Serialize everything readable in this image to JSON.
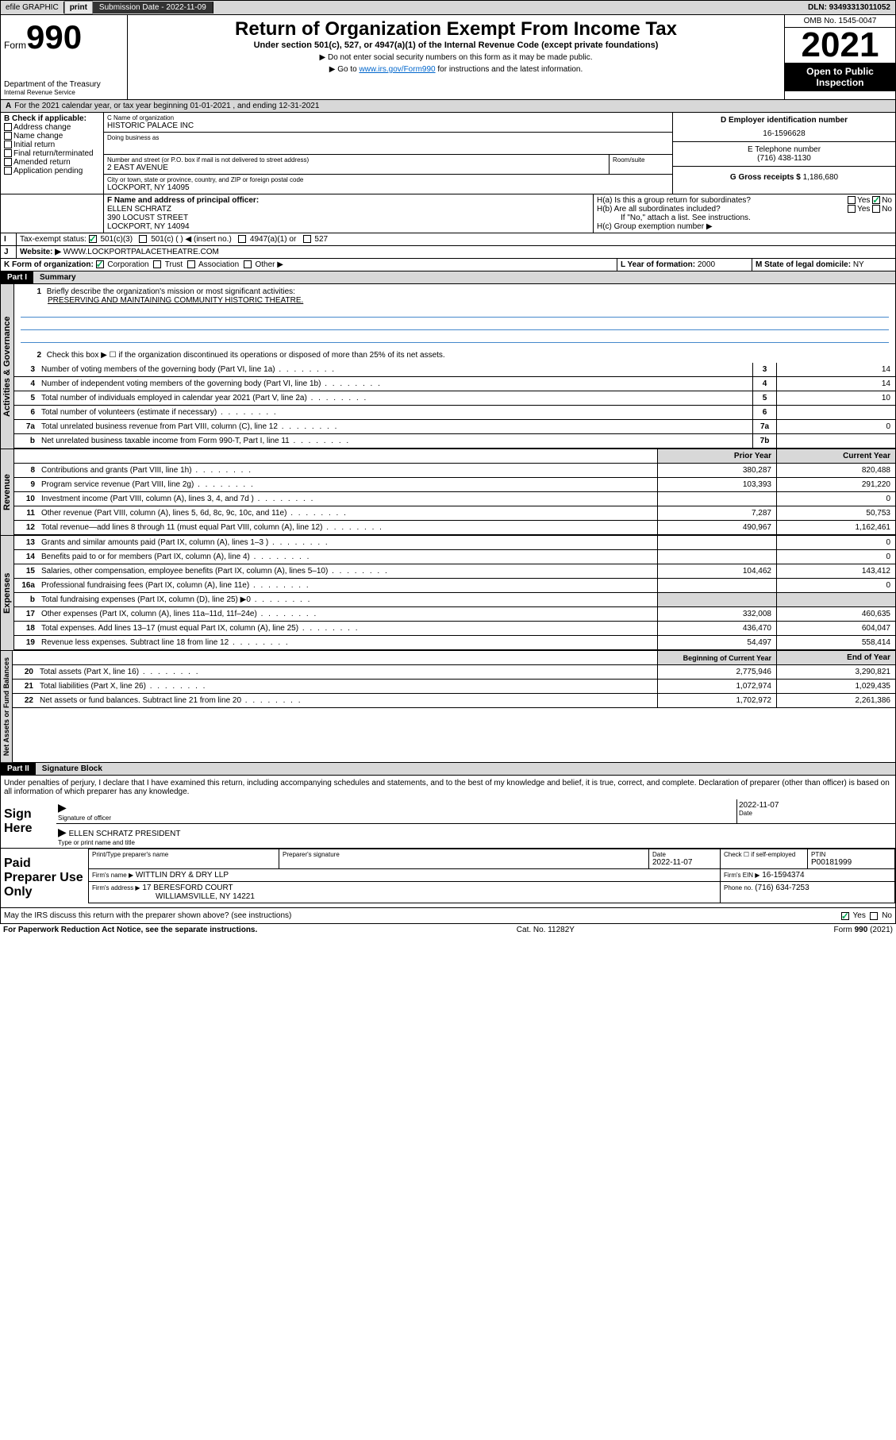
{
  "topbar": {
    "efile": "efile GRAPHIC",
    "print": "print",
    "subdate_label": "Submission Date - 2022-11-09",
    "dln": "DLN: 93493313011052"
  },
  "header": {
    "form_label": "Form",
    "form_num": "990",
    "dept": "Department of the Treasury",
    "irs": "Internal Revenue Service",
    "title": "Return of Organization Exempt From Income Tax",
    "subtitle": "Under section 501(c), 527, or 4947(a)(1) of the Internal Revenue Code (except private foundations)",
    "note1": "▶ Do not enter social security numbers on this form as it may be made public.",
    "note2_pre": "▶ Go to ",
    "note2_link": "www.irs.gov/Form990",
    "note2_post": " for instructions and the latest information.",
    "omb": "OMB No. 1545-0047",
    "year": "2021",
    "openpub": "Open to Public Inspection"
  },
  "period": {
    "text": "For the 2021 calendar year, or tax year beginning 01-01-2021   , and ending 12-31-2021"
  },
  "sectionB": {
    "label": "B Check if applicable:",
    "items": [
      "Address change",
      "Name change",
      "Initial return",
      "Final return/terminated",
      "Amended return",
      "Application pending"
    ]
  },
  "sectionC": {
    "label": "C Name of organization",
    "name": "HISTORIC PALACE INC",
    "dba_label": "Doing business as",
    "addr_label": "Number and street (or P.O. box if mail is not delivered to street address)",
    "room_label": "Room/suite",
    "addr": "2 EAST AVENUE",
    "city_label": "City or town, state or province, country, and ZIP or foreign postal code",
    "city": "LOCKPORT, NY  14095"
  },
  "sectionD": {
    "label": "D Employer identification number",
    "ein": "16-1596628"
  },
  "sectionE": {
    "label": "E Telephone number",
    "phone": "(716) 438-1130"
  },
  "sectionG": {
    "label": "G Gross receipts $",
    "amount": "1,186,680"
  },
  "sectionF": {
    "label": "F Name and address of principal officer:",
    "name": "ELLEN SCHRATZ",
    "addr": "390 LOCUST STREET",
    "city": "LOCKPORT, NY  14094"
  },
  "sectionH": {
    "ha": "H(a)  Is this a group return for subordinates?",
    "hb": "H(b)  Are all subordinates included?",
    "hb_note": "If \"No,\" attach a list. See instructions.",
    "hc": "H(c)  Group exemption number ▶",
    "yes": "Yes",
    "no": "No"
  },
  "sectionI": {
    "label": "Tax-exempt status:",
    "opt1": "501(c)(3)",
    "opt2": "501(c) (   ) ◀ (insert no.)",
    "opt3": "4947(a)(1) or",
    "opt4": "527"
  },
  "sectionJ": {
    "label": "Website: ▶",
    "url": "WWW.LOCKPORTPALACETHEATRE.COM"
  },
  "sectionK": {
    "label": "K Form of organization:",
    "opts": [
      "Corporation",
      "Trust",
      "Association",
      "Other ▶"
    ]
  },
  "sectionL": {
    "label": "L Year of formation:",
    "year": "2000"
  },
  "sectionM": {
    "label": "M State of legal domicile:",
    "state": "NY"
  },
  "part1": {
    "header": "Part I",
    "title": "Summary",
    "tab_gov": "Activities & Governance",
    "tab_rev": "Revenue",
    "tab_exp": "Expenses",
    "tab_net": "Net Assets or Fund Balances",
    "line1_label": "Briefly describe the organization's mission or most significant activities:",
    "line1_text": "PRESERVING AND MAINTAINING COMMUNITY HISTORIC THEATRE.",
    "line2": "Check this box ▶ ☐  if the organization discontinued its operations or disposed of more than 25% of its net assets.",
    "lines_gov": [
      {
        "n": "3",
        "d": "Number of voting members of the governing body (Part VI, line 1a)",
        "box": "3",
        "v": "14"
      },
      {
        "n": "4",
        "d": "Number of independent voting members of the governing body (Part VI, line 1b)",
        "box": "4",
        "v": "14"
      },
      {
        "n": "5",
        "d": "Total number of individuals employed in calendar year 2021 (Part V, line 2a)",
        "box": "5",
        "v": "10"
      },
      {
        "n": "6",
        "d": "Total number of volunteers (estimate if necessary)",
        "box": "6",
        "v": ""
      },
      {
        "n": "7a",
        "d": "Total unrelated business revenue from Part VIII, column (C), line 12",
        "box": "7a",
        "v": "0"
      },
      {
        "n": "b",
        "d": "Net unrelated business taxable income from Form 990-T, Part I, line 11",
        "box": "7b",
        "v": ""
      }
    ],
    "col_prior": "Prior Year",
    "col_current": "Current Year",
    "lines_rev": [
      {
        "n": "8",
        "d": "Contributions and grants (Part VIII, line 1h)",
        "p": "380,287",
        "c": "820,488"
      },
      {
        "n": "9",
        "d": "Program service revenue (Part VIII, line 2g)",
        "p": "103,393",
        "c": "291,220"
      },
      {
        "n": "10",
        "d": "Investment income (Part VIII, column (A), lines 3, 4, and 7d )",
        "p": "",
        "c": "0"
      },
      {
        "n": "11",
        "d": "Other revenue (Part VIII, column (A), lines 5, 6d, 8c, 9c, 10c, and 11e)",
        "p": "7,287",
        "c": "50,753"
      },
      {
        "n": "12",
        "d": "Total revenue—add lines 8 through 11 (must equal Part VIII, column (A), line 12)",
        "p": "490,967",
        "c": "1,162,461"
      }
    ],
    "lines_exp": [
      {
        "n": "13",
        "d": "Grants and similar amounts paid (Part IX, column (A), lines 1–3 )",
        "p": "",
        "c": "0"
      },
      {
        "n": "14",
        "d": "Benefits paid to or for members (Part IX, column (A), line 4)",
        "p": "",
        "c": "0"
      },
      {
        "n": "15",
        "d": "Salaries, other compensation, employee benefits (Part IX, column (A), lines 5–10)",
        "p": "104,462",
        "c": "143,412"
      },
      {
        "n": "16a",
        "d": "Professional fundraising fees (Part IX, column (A), line 11e)",
        "p": "",
        "c": "0"
      },
      {
        "n": "b",
        "d": "Total fundraising expenses (Part IX, column (D), line 25) ▶0",
        "p": "gray",
        "c": "gray"
      },
      {
        "n": "17",
        "d": "Other expenses (Part IX, column (A), lines 11a–11d, 11f–24e)",
        "p": "332,008",
        "c": "460,635"
      },
      {
        "n": "18",
        "d": "Total expenses. Add lines 13–17 (must equal Part IX, column (A), line 25)",
        "p": "436,470",
        "c": "604,047"
      },
      {
        "n": "19",
        "d": "Revenue less expenses. Subtract line 18 from line 12",
        "p": "54,497",
        "c": "558,414"
      }
    ],
    "col_beg": "Beginning of Current Year",
    "col_end": "End of Year",
    "lines_net": [
      {
        "n": "20",
        "d": "Total assets (Part X, line 16)",
        "p": "2,775,946",
        "c": "3,290,821"
      },
      {
        "n": "21",
        "d": "Total liabilities (Part X, line 26)",
        "p": "1,072,974",
        "c": "1,029,435"
      },
      {
        "n": "22",
        "d": "Net assets or fund balances. Subtract line 21 from line 20",
        "p": "1,702,972",
        "c": "2,261,386"
      }
    ]
  },
  "part2": {
    "header": "Part II",
    "title": "Signature Block",
    "declaration": "Under penalties of perjury, I declare that I have examined this return, including accompanying schedules and statements, and to the best of my knowledge and belief, it is true, correct, and complete. Declaration of preparer (other than officer) is based on all information of which preparer has any knowledge.",
    "sign_here": "Sign Here",
    "sig_officer": "Signature of officer",
    "sig_date": "2022-11-07",
    "date_label": "Date",
    "officer_name": "ELLEN SCHRATZ  PRESIDENT",
    "type_name": "Type or print name and title",
    "paid_prep": "Paid Preparer Use Only",
    "prep_name_label": "Print/Type preparer's name",
    "prep_sig_label": "Preparer's signature",
    "prep_date": "2022-11-07",
    "check_self": "Check ☐ if self-employed",
    "ptin_label": "PTIN",
    "ptin": "P00181999",
    "firm_name_label": "Firm's name     ▶",
    "firm_name": "WITTLIN DRY & DRY LLP",
    "firm_ein_label": "Firm's EIN ▶",
    "firm_ein": "16-1594374",
    "firm_addr_label": "Firm's address ▶",
    "firm_addr1": "17 BERESFORD COURT",
    "firm_addr2": "WILLIAMSVILLE, NY  14221",
    "firm_phone_label": "Phone no.",
    "firm_phone": "(716) 634-7253",
    "may_irs": "May the IRS discuss this return with the preparer shown above? (see instructions)",
    "footer_left": "For Paperwork Reduction Act Notice, see the separate instructions.",
    "footer_mid": "Cat. No. 11282Y",
    "footer_right": "Form 990 (2021)"
  }
}
